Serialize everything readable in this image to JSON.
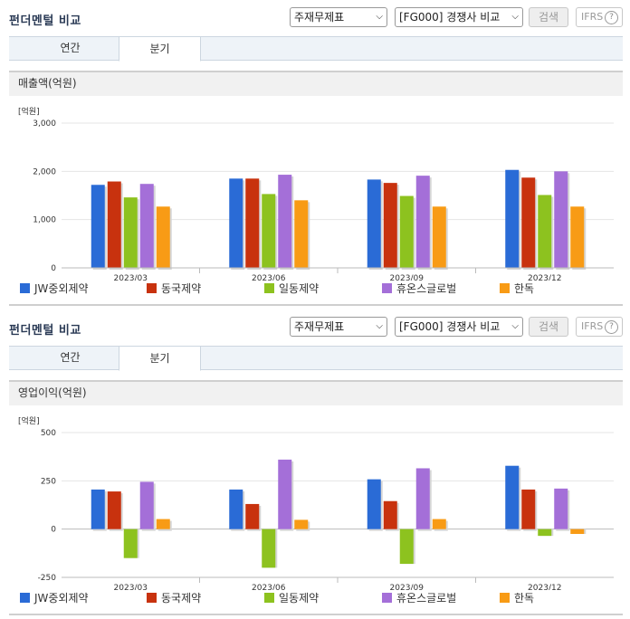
{
  "colors": [
    "#2a6bd6",
    "#c8320e",
    "#8dc21f",
    "#a46fd8",
    "#f89b15"
  ],
  "panels": [
    {
      "title": "펀더멘털 비교",
      "select1": "주재무제표",
      "select2": "[FG000] 경쟁사 비교",
      "search_label": "검색",
      "ifrs_label": "IFRS",
      "help_label": "?",
      "tabs": [
        {
          "label": "연간"
        },
        {
          "label": "분기"
        }
      ],
      "active_tab": 1,
      "section_title": "매출액(억원)",
      "chart_data": {
        "type": "bar",
        "unit": "[억원]",
        "categories": [
          "2023/03",
          "2023/06",
          "2023/09",
          "2023/12"
        ],
        "ylim": [
          0,
          3000
        ],
        "yticks": [
          "0",
          "1,000",
          "2,000",
          "3,000"
        ],
        "ytick_values": [
          0,
          1000,
          2000,
          3000
        ],
        "series": [
          {
            "name": "JW중외제약",
            "values": [
              1720,
              1850,
              1830,
              2030
            ]
          },
          {
            "name": "동국제약",
            "values": [
              1790,
              1850,
              1760,
              1870
            ]
          },
          {
            "name": "일동제약",
            "values": [
              1460,
              1530,
              1490,
              1510
            ]
          },
          {
            "name": "휴온스글로벌",
            "values": [
              1740,
              1930,
              1910,
              2000
            ]
          },
          {
            "name": "한독",
            "values": [
              1270,
              1400,
              1270,
              1270
            ]
          }
        ]
      }
    },
    {
      "title": "펀더멘털 비교",
      "select1": "주재무제표",
      "select2": "[FG000] 경쟁사 비교",
      "search_label": "검색",
      "ifrs_label": "IFRS",
      "help_label": "?",
      "tabs": [
        {
          "label": "연간"
        },
        {
          "label": "분기"
        }
      ],
      "active_tab": 1,
      "section_title": "영업이익(억원)",
      "chart_data": {
        "type": "bar",
        "unit": "[억원]",
        "categories": [
          "2023/03",
          "2023/06",
          "2023/09",
          "2023/12"
        ],
        "ylim": [
          -250,
          500
        ],
        "yticks": [
          "-250",
          "0",
          "250",
          "500"
        ],
        "ytick_values": [
          -250,
          0,
          250,
          500
        ],
        "series": [
          {
            "name": "JW중외제약",
            "values": [
              205,
              205,
              258,
              328
            ]
          },
          {
            "name": "동국제약",
            "values": [
              195,
              130,
              145,
              205
            ]
          },
          {
            "name": "일동제약",
            "values": [
              -150,
              -200,
              -180,
              -35
            ]
          },
          {
            "name": "휴온스글로벌",
            "values": [
              245,
              360,
              315,
              210
            ]
          },
          {
            "name": "한독",
            "values": [
              52,
              48,
              52,
              -25
            ]
          }
        ]
      }
    }
  ]
}
